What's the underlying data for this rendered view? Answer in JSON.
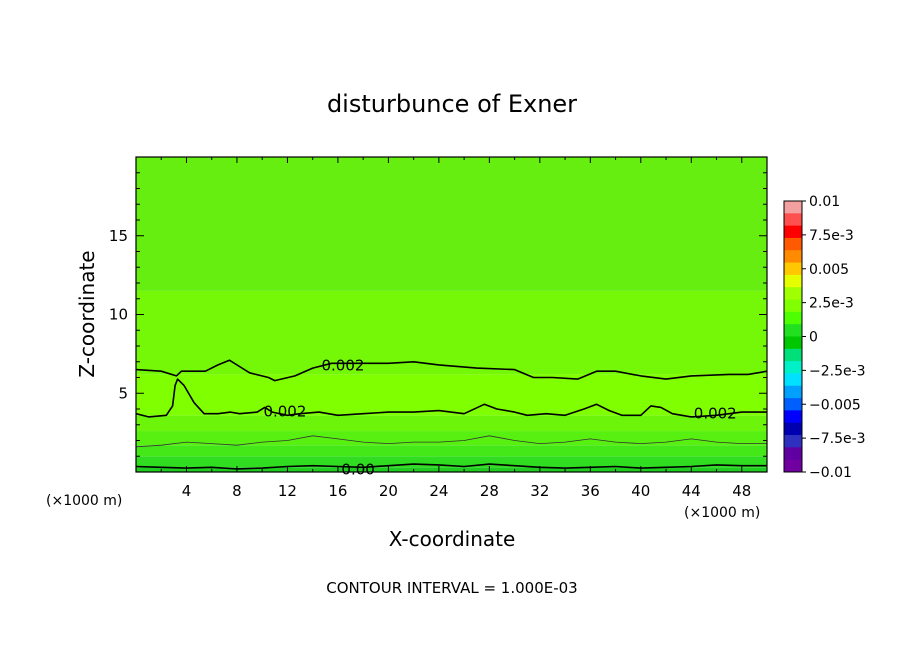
{
  "chart_data": {
    "type": "heatmap",
    "title": "disturbunce of Exner",
    "xlabel": "X-coordinate",
    "ylabel": "Z-coordinate",
    "x_unit": "(×1000 m)",
    "x_unit_right": "(×1000 m)",
    "xlim": [
      0,
      50
    ],
    "ylim": [
      0,
      20
    ],
    "xticks": [
      4,
      8,
      12,
      16,
      20,
      24,
      28,
      32,
      36,
      40,
      44,
      48
    ],
    "xtick_labels": [
      "4",
      "8",
      "12",
      "16",
      "20",
      "24",
      "28",
      "32",
      "36",
      "40",
      "44",
      "48"
    ],
    "yticks": [
      5,
      10,
      15
    ],
    "ytick_labels": [
      "5",
      "10",
      "15"
    ],
    "colorbar": {
      "min": -0.01,
      "max": 0.01,
      "labels": [
        "0.01",
        "7.5e-3",
        "0.005",
        "2.5e-3",
        "0",
        "−2.5e-3",
        "−0.005",
        "−7.5e-3",
        "−0.01"
      ],
      "label_values": [
        0.01,
        0.0075,
        0.005,
        0.0025,
        0,
        -0.0025,
        -0.005,
        -0.0075,
        -0.01
      ],
      "colors": [
        "#f5a0a0",
        "#ff5050",
        "#ff0000",
        "#ff5a00",
        "#ff8c00",
        "#ffc800",
        "#e6ff00",
        "#a0ff00",
        "#7fff00",
        "#4dff00",
        "#20e020",
        "#00c800",
        "#00e07a",
        "#00f0c8",
        "#00e0ff",
        "#00a0ff",
        "#0060ff",
        "#0000ff",
        "#0000b0",
        "#3030c0",
        "#6000a0",
        "#7000a0"
      ]
    },
    "bands": [
      {
        "z": [
          0,
          0.3
        ],
        "value": -0.0004,
        "color": "#20cc20"
      },
      {
        "z": [
          0.3,
          1.0
        ],
        "value": 0.0002,
        "color": "#30dd20"
      },
      {
        "z": [
          1.0,
          1.7
        ],
        "value": 0.0008,
        "color": "#44e818"
      },
      {
        "z": [
          1.7,
          2.6
        ],
        "value": 0.0012,
        "color": "#58f010"
      },
      {
        "z": [
          2.6,
          3.6
        ],
        "value": 0.0016,
        "color": "#6cf50a"
      },
      {
        "z": [
          3.6,
          6.2
        ],
        "value": 0.0022,
        "color": "#80ff00"
      },
      {
        "z": [
          6.2,
          11.5
        ],
        "value": 0.0018,
        "color": "#74f808"
      },
      {
        "z": [
          11.5,
          20
        ],
        "value": 0.0012,
        "color": "#66ee10"
      }
    ],
    "contours": [
      {
        "level": 0.002,
        "label": "0.002",
        "points": [
          [
            0,
            6.5
          ],
          [
            2,
            6.4
          ],
          [
            3.2,
            6.1
          ],
          [
            3.6,
            6.4
          ],
          [
            5.5,
            6.4
          ],
          [
            6.5,
            6.8
          ],
          [
            7.4,
            7.1
          ],
          [
            8.2,
            6.7
          ],
          [
            9,
            6.3
          ],
          [
            10.5,
            6.0
          ],
          [
            11,
            5.8
          ],
          [
            12.6,
            6.1
          ],
          [
            14,
            6.6
          ],
          [
            15.5,
            6.9
          ],
          [
            18,
            6.9
          ],
          [
            20,
            6.9
          ],
          [
            22,
            7.0
          ],
          [
            24,
            6.8
          ],
          [
            27,
            6.6
          ],
          [
            30,
            6.5
          ],
          [
            31.5,
            6.0
          ],
          [
            33,
            6.0
          ],
          [
            35,
            5.9
          ],
          [
            36.5,
            6.4
          ],
          [
            38,
            6.4
          ],
          [
            40,
            6.1
          ],
          [
            42,
            5.9
          ],
          [
            44,
            6.1
          ],
          [
            47,
            6.2
          ],
          [
            48.5,
            6.2
          ],
          [
            50,
            6.4
          ]
        ],
        "label_at": [
          16.4,
          6.75
        ]
      },
      {
        "level": 0.002,
        "label": "0.002",
        "points": [
          [
            0,
            3.7
          ],
          [
            1,
            3.5
          ],
          [
            2.4,
            3.6
          ],
          [
            2.9,
            4.2
          ],
          [
            3.1,
            5.5
          ],
          [
            3.3,
            5.9
          ],
          [
            3.8,
            5.5
          ],
          [
            4.6,
            4.4
          ],
          [
            5.4,
            3.7
          ],
          [
            6.5,
            3.7
          ],
          [
            7.5,
            3.8
          ],
          [
            8.2,
            3.7
          ],
          [
            9.6,
            3.8
          ],
          [
            10.2,
            4.1
          ],
          [
            10.8,
            3.8
          ],
          [
            12,
            3.6
          ],
          [
            13,
            3.7
          ],
          [
            14.5,
            3.8
          ],
          [
            16,
            3.6
          ],
          [
            18,
            3.7
          ],
          [
            20,
            3.8
          ],
          [
            22,
            3.8
          ],
          [
            24,
            3.9
          ],
          [
            26,
            3.7
          ],
          [
            27.6,
            4.3
          ],
          [
            28.6,
            4.0
          ],
          [
            30,
            3.8
          ],
          [
            31,
            3.6
          ],
          [
            32.5,
            3.7
          ],
          [
            34,
            3.6
          ],
          [
            35.5,
            4.0
          ],
          [
            36.5,
            4.3
          ],
          [
            37.5,
            3.9
          ],
          [
            38.5,
            3.6
          ],
          [
            40,
            3.6
          ],
          [
            40.8,
            4.2
          ],
          [
            41.6,
            4.1
          ],
          [
            42.5,
            3.7
          ],
          [
            44,
            3.5
          ],
          [
            46,
            3.6
          ],
          [
            48,
            3.8
          ],
          [
            50,
            3.8
          ]
        ],
        "label_at": [
          11.8,
          3.85
        ]
      },
      {
        "level": 0.001,
        "label": "",
        "thin": true,
        "points": [
          [
            0,
            1.6
          ],
          [
            2,
            1.7
          ],
          [
            4,
            1.9
          ],
          [
            6,
            1.8
          ],
          [
            8,
            1.7
          ],
          [
            10,
            1.9
          ],
          [
            12,
            2.0
          ],
          [
            14,
            2.3
          ],
          [
            16,
            2.1
          ],
          [
            18,
            1.9
          ],
          [
            20,
            1.8
          ],
          [
            22,
            1.9
          ],
          [
            24,
            1.9
          ],
          [
            26,
            2.0
          ],
          [
            28,
            2.3
          ],
          [
            30,
            2.0
          ],
          [
            32,
            1.8
          ],
          [
            34,
            1.9
          ],
          [
            36,
            2.1
          ],
          [
            38,
            1.9
          ],
          [
            40,
            1.8
          ],
          [
            42,
            1.9
          ],
          [
            44,
            2.1
          ],
          [
            46,
            1.9
          ],
          [
            48,
            1.8
          ],
          [
            50,
            1.8
          ]
        ],
        "label_at": null
      },
      {
        "level": 0.0,
        "label": "0.00",
        "points": [
          [
            0,
            0.35
          ],
          [
            2,
            0.3
          ],
          [
            4,
            0.25
          ],
          [
            6,
            0.3
          ],
          [
            8,
            0.2
          ],
          [
            10,
            0.25
          ],
          [
            12,
            0.35
          ],
          [
            14,
            0.4
          ],
          [
            16,
            0.35
          ],
          [
            18,
            0.3
          ],
          [
            20,
            0.4
          ],
          [
            22,
            0.5
          ],
          [
            24,
            0.45
          ],
          [
            26,
            0.35
          ],
          [
            28,
            0.5
          ],
          [
            30,
            0.4
          ],
          [
            32,
            0.3
          ],
          [
            34,
            0.25
          ],
          [
            36,
            0.3
          ],
          [
            38,
            0.35
          ],
          [
            40,
            0.25
          ],
          [
            42,
            0.3
          ],
          [
            44,
            0.35
          ],
          [
            46,
            0.45
          ],
          [
            48,
            0.4
          ],
          [
            50,
            0.4
          ]
        ],
        "label_at": [
          17.6,
          0.15
        ]
      }
    ]
  },
  "footer": {
    "contour_interval": "CONTOUR INTERVAL = 1.000E-03"
  }
}
